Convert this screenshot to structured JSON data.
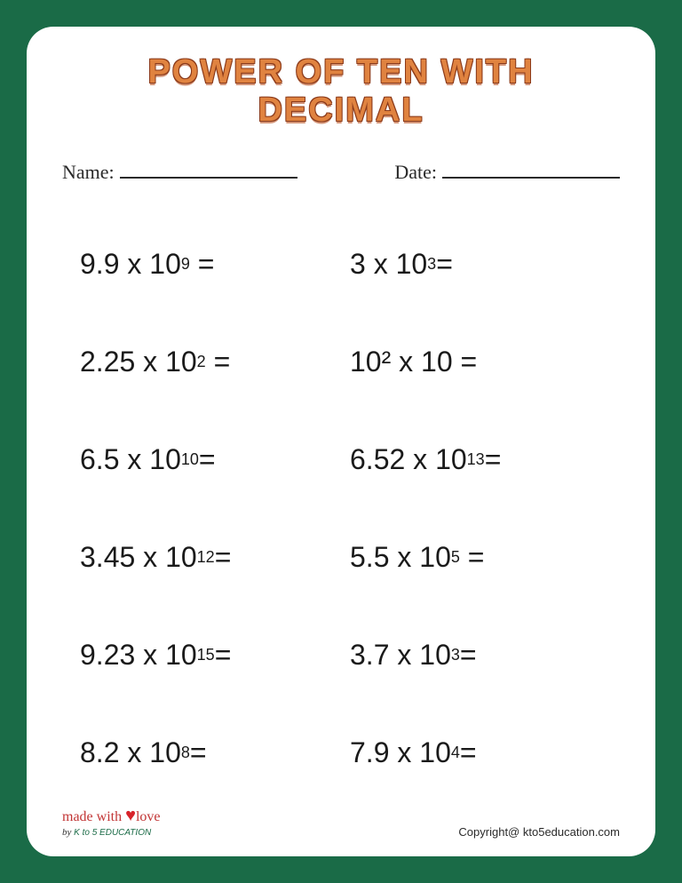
{
  "title": "POWER OF TEN WITH DECIMAL",
  "colors": {
    "border": "#1a6b47",
    "page": "#ffffff",
    "title_fill": "#e08340",
    "title_outline": "#8b3a1a",
    "text": "#1a1a1a",
    "accent_red": "#c23535"
  },
  "info": {
    "name_label": "Name:",
    "date_label": "Date:"
  },
  "problems": {
    "left": [
      {
        "coefficient": "9.9",
        "exponent": "9"
      },
      {
        "coefficient": "2.25",
        "exponent": "2"
      },
      {
        "coefficient": "6.5",
        "exponent": "10"
      },
      {
        "coefficient": "3.45",
        "exponent": "12"
      },
      {
        "coefficient": "9.23",
        "exponent": "15"
      },
      {
        "coefficient": "8.2",
        "exponent": "8"
      }
    ],
    "right": [
      {
        "coefficient": "3",
        "exponent": "3"
      },
      {
        "special": "10² x 10 ="
      },
      {
        "coefficient": "6.52",
        "exponent": "13"
      },
      {
        "coefficient": "5.5",
        "exponent": "5"
      },
      {
        "coefficient": "3.7",
        "exponent": "3"
      },
      {
        "coefficient": "7.9",
        "exponent": "4"
      }
    ]
  },
  "footer": {
    "made_with": "made with",
    "love": "love",
    "by": "by",
    "brand": "K to 5 EDUCATION",
    "copyright": "Copyright@ kto5education.com"
  }
}
